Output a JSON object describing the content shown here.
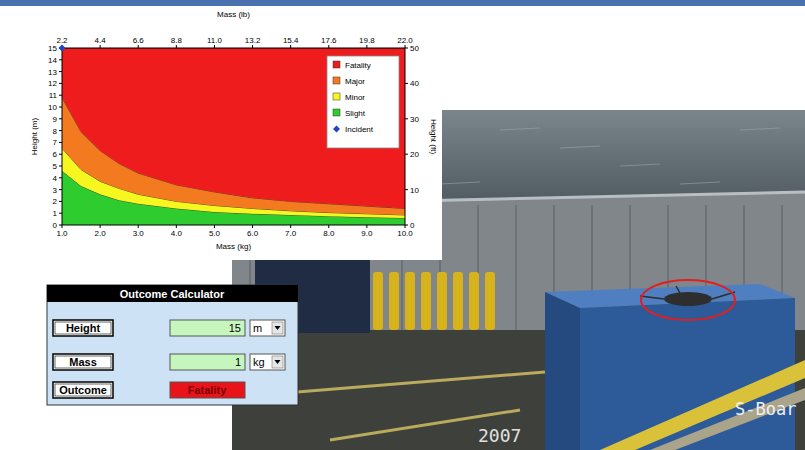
{
  "chart_data": {
    "type": "area",
    "stacked": true,
    "xlabel": "Mass (kg)",
    "ylabel": "Height (m)",
    "x2label": "Mass (lb)",
    "y2label": "Height (ft)",
    "x": [
      1,
      1.5,
      2,
      2.5,
      3,
      4,
      5,
      6,
      7,
      8,
      9,
      10
    ],
    "xlim": [
      1,
      10
    ],
    "xticks": [
      {
        "value": 1,
        "label": "1.0"
      },
      {
        "value": 2,
        "label": "2.0"
      },
      {
        "value": 3,
        "label": "3.0"
      },
      {
        "value": 4,
        "label": "4.0"
      },
      {
        "value": 5,
        "label": "5.0"
      },
      {
        "value": 6,
        "label": "6.0"
      },
      {
        "value": 7,
        "label": "7.0"
      },
      {
        "value": 8,
        "label": "8.0"
      },
      {
        "value": 9,
        "label": "9.0"
      },
      {
        "value": 10,
        "label": "10.0"
      }
    ],
    "x2lim": [
      2.2,
      22
    ],
    "x2ticks": [
      2.2,
      4.4,
      6.6,
      8.8,
      {
        "value": 11,
        "label": "11.0"
      },
      13.2,
      15.4,
      17.6,
      19.8,
      {
        "value": 22,
        "label": "22.0"
      }
    ],
    "ylim": [
      0,
      15
    ],
    "yticks": [
      0,
      1,
      2,
      3,
      4,
      5,
      6,
      7,
      8,
      9,
      10,
      11,
      12,
      13,
      14,
      15
    ],
    "y2lim": [
      0,
      50
    ],
    "y2ticks": [
      0,
      10,
      20,
      30,
      40,
      50
    ],
    "legend": "top-right",
    "series": [
      {
        "name": "Fatality",
        "color": "#ee1c1c",
        "values": [
          4.2,
          7.1,
          8.7,
          9.8,
          10.6,
          11.6,
          12.2,
          12.7,
          13.0,
          13.2,
          13.4,
          13.6
        ]
      },
      {
        "name": "Major",
        "color": "#f47a20",
        "values": [
          4.3,
          3.2,
          2.6,
          2.1,
          1.8,
          1.4,
          1.15,
          0.9,
          0.8,
          0.75,
          0.65,
          0.55
        ]
      },
      {
        "name": "Minor",
        "color": "#f7f720",
        "values": [
          1.9,
          1.4,
          1.1,
          1.0,
          0.8,
          0.6,
          0.55,
          0.45,
          0.35,
          0.3,
          0.3,
          0.25
        ]
      },
      {
        "name": "Slight",
        "color": "#2fcc2f",
        "values": [
          4.6,
          3.3,
          2.6,
          2.1,
          1.8,
          1.4,
          1.1,
          0.95,
          0.85,
          0.75,
          0.65,
          0.6
        ]
      },
      {
        "name": "Incident",
        "type": "scatter",
        "marker": "diamond",
        "color": "#1f45c8",
        "x": [
          1
        ],
        "values": [
          15
        ]
      }
    ]
  },
  "calculator": {
    "title": "Outcome Calculator",
    "rows": [
      {
        "label": "Height",
        "value": 15,
        "unit": "m"
      },
      {
        "label": "Mass",
        "value": 1,
        "unit": "kg"
      },
      {
        "label": "Outcome",
        "value": "Fatality"
      }
    ]
  },
  "photo": {
    "year": "2007",
    "caption": "S-Boar"
  }
}
